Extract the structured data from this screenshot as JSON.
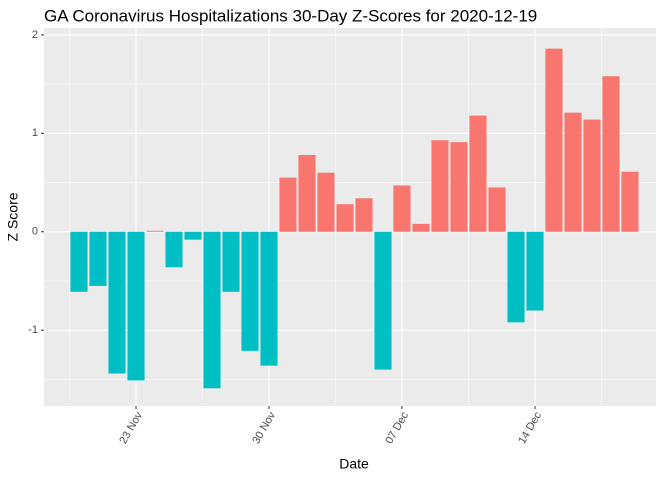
{
  "chart_data": {
    "type": "bar",
    "title": "GA Coronavirus Hospitalizations 30-Day Z-Scores for 2020-12-19",
    "x_label": "Date",
    "y_label": "Z Score",
    "categories": [
      null,
      null,
      null,
      "23 Nov",
      null,
      null,
      null,
      null,
      null,
      null,
      "30 Nov",
      null,
      null,
      null,
      null,
      null,
      null,
      "07 Dec",
      null,
      null,
      null,
      null,
      null,
      null,
      "14 Dec",
      null,
      null,
      null,
      null,
      null
    ],
    "values": [
      -0.61,
      -0.55,
      -1.44,
      -1.51,
      0.01,
      -0.36,
      -0.08,
      -1.59,
      -0.61,
      -1.21,
      -1.36,
      0.55,
      0.78,
      0.6,
      0.28,
      0.34,
      -1.4,
      0.47,
      0.08,
      0.93,
      0.91,
      1.18,
      0.45,
      -0.92,
      -0.8,
      1.86,
      1.21,
      1.14,
      1.58,
      0.61
    ],
    "colors": [
      "#00BFC4",
      "#00BFC4",
      "#00BFC4",
      "#00BFC4",
      "#F8766D",
      "#00BFC4",
      "#00BFC4",
      "#00BFC4",
      "#00BFC4",
      "#00BFC4",
      "#00BFC4",
      "#F8766D",
      "#F8766D",
      "#F8766D",
      "#F8766D",
      "#F8766D",
      "#00BFC4",
      "#F8766D",
      "#F8766D",
      "#F8766D",
      "#F8766D",
      "#F8766D",
      "#F8766D",
      "#00BFC4",
      "#00BFC4",
      "#F8766D",
      "#F8766D",
      "#F8766D",
      "#F8766D",
      "#F8766D"
    ],
    "ylim": [
      -1.77,
      2.07
    ],
    "yticks": [
      -1,
      0,
      1,
      2
    ],
    "grid": true
  }
}
